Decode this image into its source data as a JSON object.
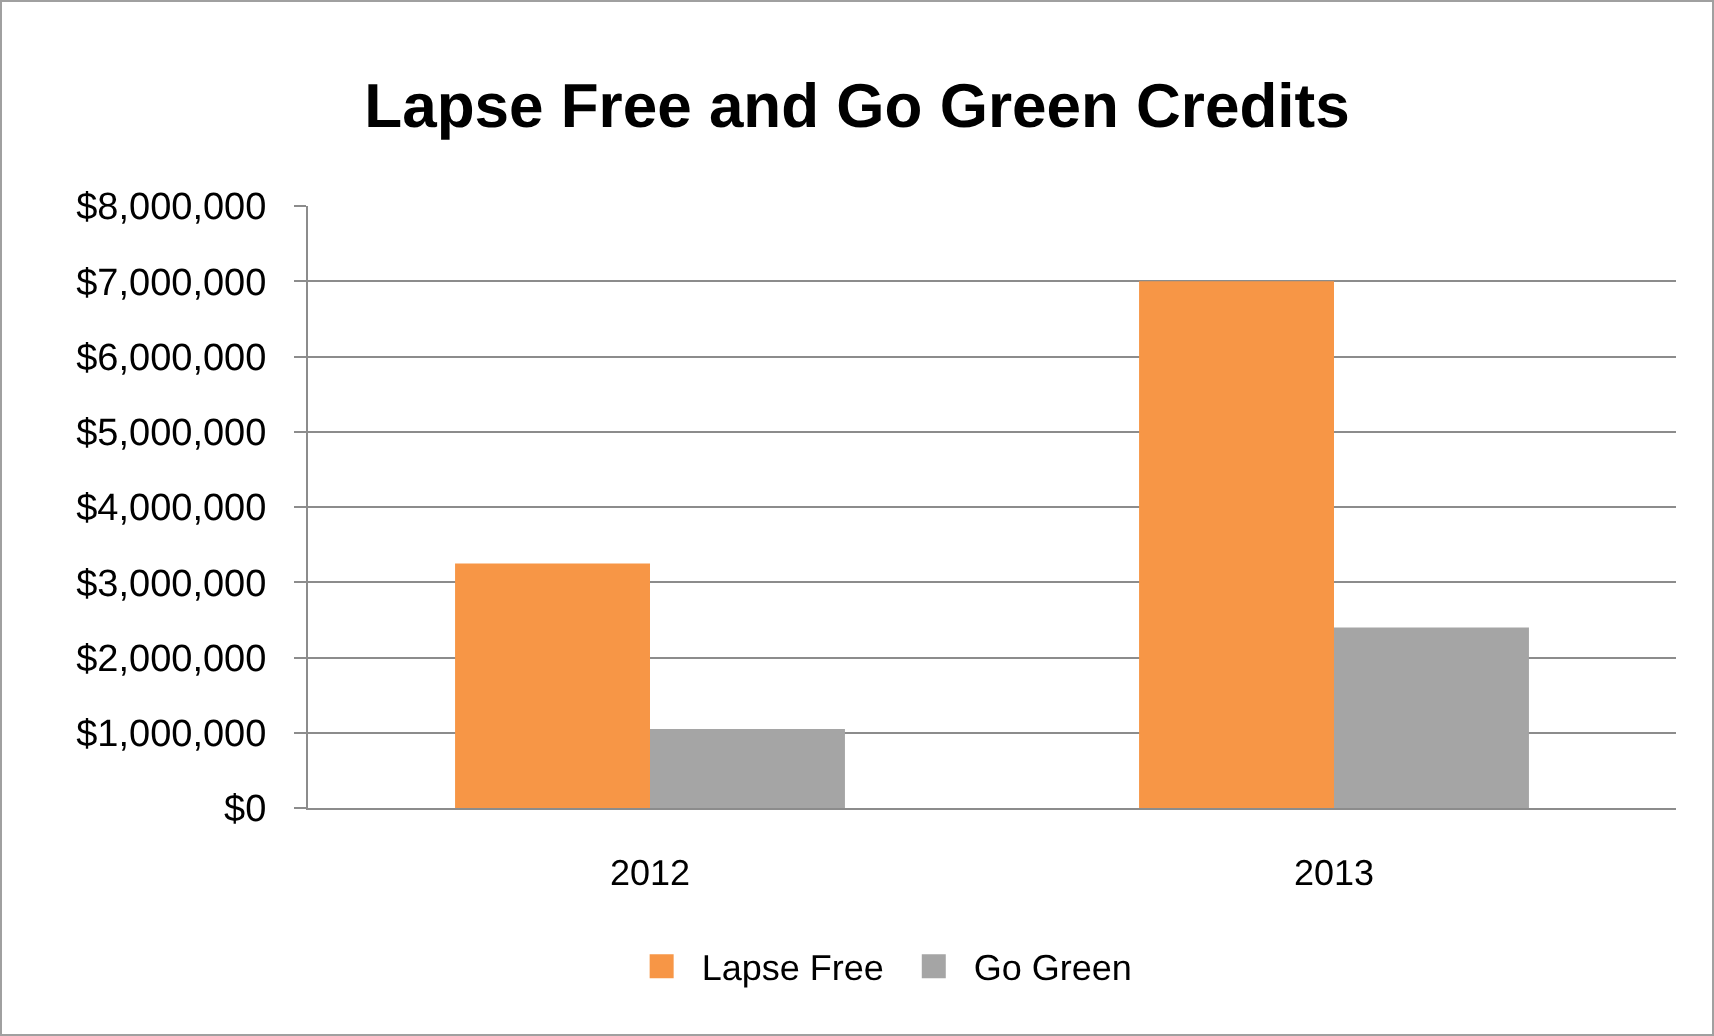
{
  "chart_data": {
    "type": "bar",
    "title": "Lapse Free and Go Green Credits",
    "categories": [
      "2012",
      "2013"
    ],
    "series": [
      {
        "name": "Lapse Free",
        "color": "#f79646",
        "values": [
          3250000,
          7000000
        ]
      },
      {
        "name": "Go Green",
        "color": "#a5a5a5",
        "values": [
          1050000,
          2400000
        ]
      }
    ],
    "ylim": [
      0,
      8000000
    ],
    "yticks": [
      {
        "value": 0,
        "label": "$0"
      },
      {
        "value": 1000000,
        "label": "$1,000,000"
      },
      {
        "value": 2000000,
        "label": "$2,000,000"
      },
      {
        "value": 3000000,
        "label": "$3,000,000"
      },
      {
        "value": 4000000,
        "label": "$4,000,000"
      },
      {
        "value": 5000000,
        "label": "$5,000,000"
      },
      {
        "value": 6000000,
        "label": "$6,000,000"
      },
      {
        "value": 7000000,
        "label": "$7,000,000"
      },
      {
        "value": 8000000,
        "label": "$8,000,000"
      }
    ],
    "grid": "y",
    "legend": "bottom"
  }
}
